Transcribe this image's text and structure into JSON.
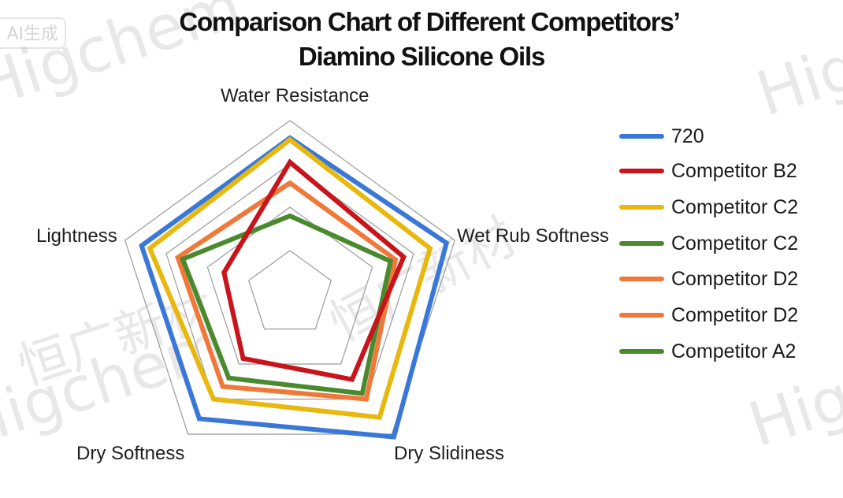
{
  "watermark": {
    "badge": "AI生成",
    "texts": [
      "Higchem",
      "恒广新材",
      "Higchem",
      "恒广新材",
      "Higchem"
    ]
  },
  "title": {
    "line1": "Comparison Chart of Different Competitors’",
    "line2": "Diamino Silicone Oils"
  },
  "colors": {
    "blue": "#3a78d8",
    "red": "#c8141a",
    "yellow": "#e8b80e",
    "green": "#4a8a2e",
    "orange": "#f07838",
    "grid": "#9a9a9a"
  },
  "chart_data": {
    "type": "radar",
    "title": "Comparison Chart of Different Competitors’ Diamino Silicone Oils",
    "axes": [
      "Water Resistance",
      "Wet Rub Softness",
      "Dry Slidiness",
      "Dry Softness",
      "Lightness"
    ],
    "range": [
      0,
      10
    ],
    "grid_levels": [
      2.5,
      5,
      7.5,
      10
    ],
    "grid": true,
    "legend_position": "right",
    "series": [
      {
        "name": "720",
        "color": "#3a78d8",
        "values": [
          9.0,
          9.5,
          10.2,
          8.9,
          9.0
        ]
      },
      {
        "name": "Competitor B2",
        "color": "#c8141a",
        "values": [
          7.6,
          6.9,
          6.1,
          4.6,
          4.0
        ]
      },
      {
        "name": "Competitor C2",
        "color": "#e8b80e",
        "values": [
          8.9,
          8.5,
          8.8,
          7.5,
          8.5
        ]
      },
      {
        "name": "Competitor C2",
        "color": "#4a8a2e",
        "values": [
          4.5,
          6.1,
          7.1,
          6.0,
          6.5
        ]
      },
      {
        "name": "Competitor D2",
        "color": "#f07838",
        "values": [
          6.4,
          6.4,
          7.5,
          6.6,
          6.8
        ]
      },
      {
        "name": "Competitor D2",
        "color": "#f07838",
        "values": [
          6.4,
          6.4,
          7.5,
          6.6,
          6.8
        ]
      },
      {
        "name": "Competitor A2",
        "color": "#4a8a2e",
        "values": [
          4.5,
          6.1,
          7.1,
          6.0,
          6.5
        ]
      }
    ]
  },
  "axis_labels": {
    "water_resistance": "Water Resistance",
    "wet_rub_softness": "Wet Rub Softness",
    "dry_slidiness": "Dry Slidiness",
    "dry_softness": "Dry Softness",
    "lightness": "Lightness"
  },
  "legend": {
    "items": [
      {
        "label": "720",
        "color": "#3a78d8"
      },
      {
        "label": "Competitor B2",
        "color": "#c8141a"
      },
      {
        "label": "Competitor C2",
        "color": "#e8b80e"
      },
      {
        "label": "Competitor C2",
        "color": "#4a8a2e"
      },
      {
        "label": "Competitor D2",
        "color": "#f07838"
      },
      {
        "label": "Competitor D2",
        "color": "#f07838"
      },
      {
        "label": "Competitor A2",
        "color": "#4a8a2e"
      }
    ]
  }
}
